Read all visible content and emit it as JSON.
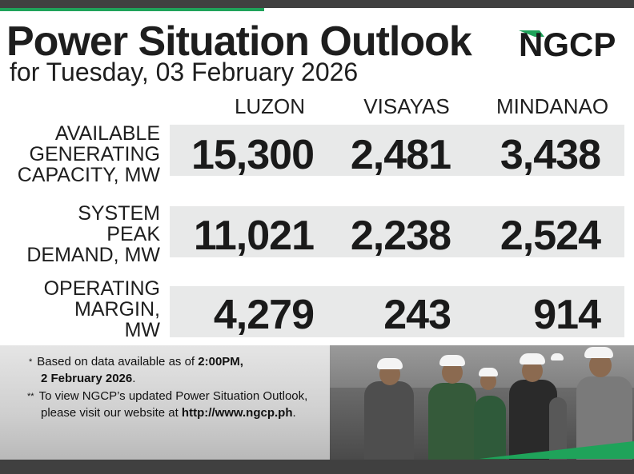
{
  "header": {
    "title": "Power Situation Outlook",
    "subtitle": "for Tuesday, 03 February 2026",
    "logo_text": "NGCP"
  },
  "columns": [
    "LUZON",
    "VISAYAS",
    "MINDANAO"
  ],
  "rows": [
    {
      "label_lines": [
        "AVAILABLE",
        "GENERATING",
        "CAPACITY, MW"
      ],
      "values": [
        "15,300",
        "2,481",
        "3,438"
      ]
    },
    {
      "label_lines": [
        "SYSTEM",
        "PEAK",
        "DEMAND, MW"
      ],
      "values": [
        "11,021",
        "2,238",
        "2,524"
      ]
    },
    {
      "label_lines": [
        "OPERATING",
        "MARGIN,",
        "MW"
      ],
      "values": [
        "4,279",
        "243",
        "914"
      ]
    }
  ],
  "notes": {
    "note1_marker": "*",
    "note1_line1_prefix": "Based on data available as of ",
    "note1_line1_bold": "2:00PM,",
    "note1_line2_bold": "2 February 2026",
    "note1_line2_suffix": ".",
    "note2_marker": "**",
    "note2_line1": "To view NGCP’s updated Power Situation Outlook,",
    "note2_line2_prefix": "please visit our website at ",
    "note2_line2_bold": "http://www.ngcp.ph",
    "note2_line2_suffix": "."
  },
  "colors": {
    "accent_green": "#1fa35a",
    "dark_bar": "#404040",
    "row_bg": "#e8e9e9"
  }
}
